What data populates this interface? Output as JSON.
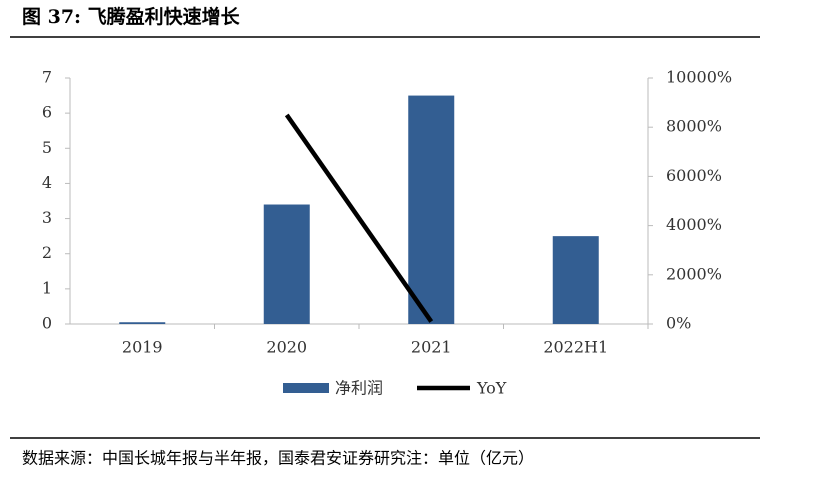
{
  "chart_data": {
    "type": "bar",
    "title": "图 37: 飞腾盈利快速增长",
    "source": "数据来源：中国长城年报与半年报，国泰君安证券研究注：单位（亿元）",
    "categories": [
      "2019",
      "2020",
      "2021",
      "2022H1"
    ],
    "series": [
      {
        "name": "净利润",
        "type": "bar",
        "color": "#335e92",
        "values": [
          0.05,
          3.4,
          6.5,
          2.5
        ]
      },
      {
        "name": "YoY",
        "type": "line",
        "axis": "y2",
        "color": "#000000",
        "values": [
          null,
          8500,
          100,
          null
        ]
      }
    ],
    "ylim": [
      0,
      7
    ],
    "yticks": [
      0,
      1,
      2,
      3,
      4,
      5,
      6,
      7
    ],
    "y2lim": [
      0,
      10000
    ],
    "y2ticks": [
      {
        "value": 0,
        "label": "0%"
      },
      {
        "value": 2000,
        "label": "2000%"
      },
      {
        "value": 4000,
        "label": "4000%"
      },
      {
        "value": 6000,
        "label": "6000%"
      },
      {
        "value": 8000,
        "label": "8000%"
      },
      {
        "value": 10000,
        "label": "10000%"
      }
    ],
    "legend": "bottom"
  }
}
